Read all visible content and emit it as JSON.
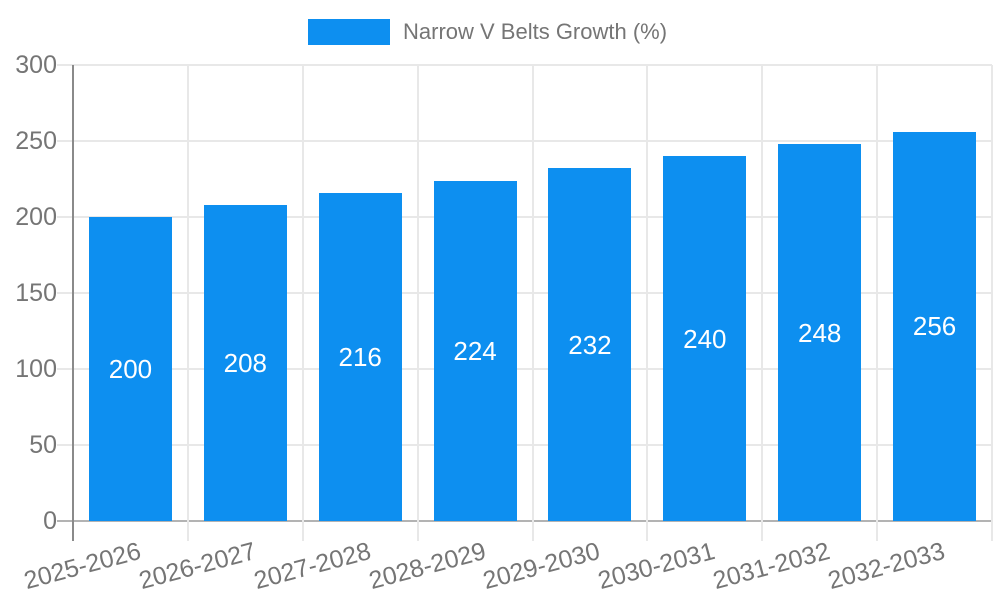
{
  "chart_data": {
    "type": "bar",
    "title": "",
    "legend": "Narrow V Belts Growth (%)",
    "legend_position": "top-center",
    "categories": [
      "2025-2026",
      "2026-2027",
      "2027-2028",
      "2028-2029",
      "2029-2030",
      "2030-2031",
      "2031-2032",
      "2032-2033"
    ],
    "values": [
      200,
      208,
      216,
      224,
      232,
      240,
      248,
      256
    ],
    "series": [
      {
        "name": "Narrow V Belts Growth (%)",
        "values": [
          200,
          208,
          216,
          224,
          232,
          240,
          248,
          256
        ]
      }
    ],
    "value_labels": "inside-center",
    "xlabel": "",
    "ylabel": "",
    "ylim": [
      0,
      300
    ],
    "yticks": [
      0,
      50,
      100,
      150,
      200,
      250,
      300
    ],
    "grid": true,
    "x_label_rotation_deg": -15,
    "colors": {
      "bar": "#0d8ff0",
      "axis_text": "#757575",
      "value_label_text": "#ffffff",
      "gridline": "#e8e8e8",
      "baseline": "#b3b3b3",
      "axis_line": "#8a8a8a",
      "background": "#ffffff"
    }
  }
}
